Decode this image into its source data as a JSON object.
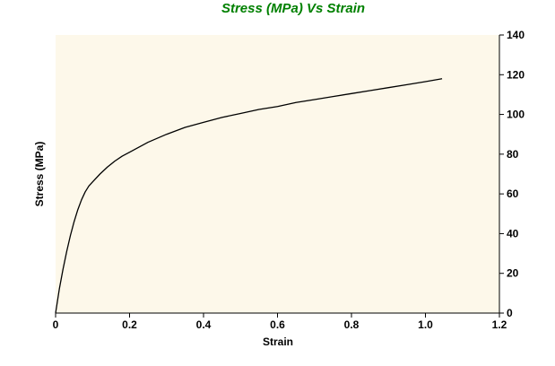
{
  "chart_data": {
    "type": "line",
    "title": "Stress (MPa) Vs Strain",
    "xlabel": "Strain",
    "ylabel": "Stress (MPa)",
    "xlim": [
      0,
      1.2
    ],
    "ylim": [
      0,
      140
    ],
    "x_ticks": [
      "0",
      "0.2",
      "0.4",
      "0.6",
      "0.8",
      "1.0",
      "1.2"
    ],
    "y_ticks": [
      "0",
      "20",
      "40",
      "60",
      "80",
      "100",
      "120",
      "140"
    ],
    "y_axis_side": "right",
    "grid": false,
    "legend": "none",
    "series": [
      {
        "x": [
          0,
          0.01,
          0.02,
          0.03,
          0.04,
          0.05,
          0.06,
          0.07,
          0.08,
          0.09,
          0.1,
          0.12,
          0.14,
          0.16,
          0.18,
          0.2,
          0.25,
          0.3,
          0.35,
          0.4,
          0.45,
          0.5,
          0.55,
          0.6,
          0.65,
          0.7,
          0.75,
          0.8,
          0.85,
          0.9,
          0.95,
          1.0,
          1.045
        ],
        "y": [
          0,
          12,
          22,
          31,
          39,
          46,
          52,
          57,
          61,
          64,
          66,
          70,
          73.5,
          76.5,
          79,
          81,
          86,
          90,
          93.5,
          96,
          98.5,
          100.5,
          102.5,
          104,
          106,
          107.5,
          109,
          110.5,
          112,
          113.5,
          115,
          116.5,
          118
        ]
      }
    ],
    "colors": {
      "title": "#008000",
      "plot_background": "#fdf8ea",
      "line": "#000000",
      "axis": "#000000"
    }
  }
}
